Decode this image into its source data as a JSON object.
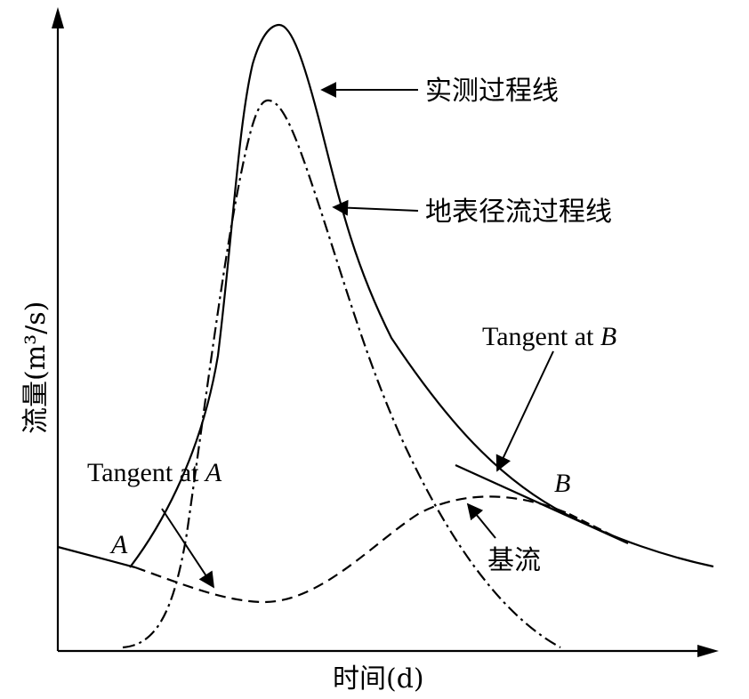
{
  "axes": {
    "y_label": "流量(m³/s)",
    "x_label": "时间(d)"
  },
  "curves": {
    "measured": "实测过程线",
    "surface_runoff": "地表径流过程线",
    "baseflow": "基流"
  },
  "points": {
    "a": "A",
    "b": "B"
  },
  "tangents": {
    "a_prefix": "Tangent at ",
    "a_point": "A",
    "b_prefix": "Tangent at ",
    "b_point": "B"
  }
}
